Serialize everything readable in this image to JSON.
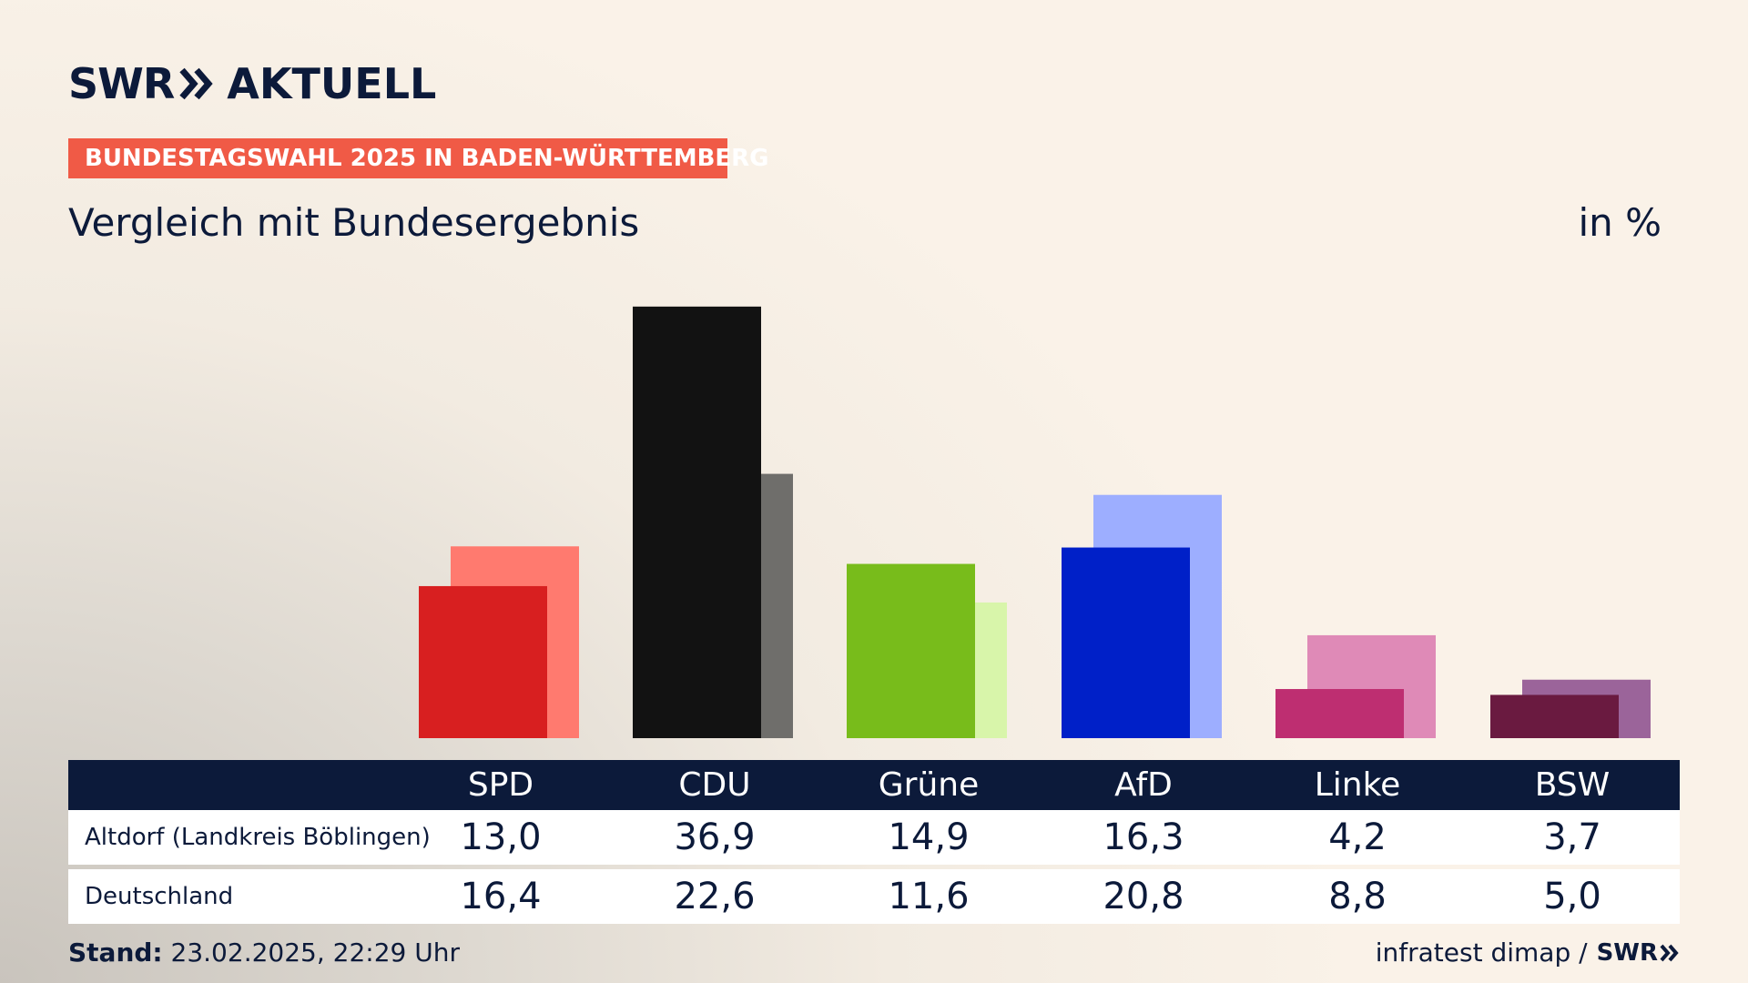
{
  "brand": {
    "swr": "SWR",
    "aktuell": "AKTUELL",
    "footer_swr": "SWR",
    "color": "#0c1a3a"
  },
  "banner": {
    "text": "BUNDESTAGSWAHL 2025 IN BADEN-WÜRTTEMBERG",
    "color": "#f05a46"
  },
  "header": {
    "subtitle": "Vergleich mit Bundesergebnis",
    "unit": "in %"
  },
  "footer": {
    "stand_label": "Stand:",
    "stand_value": "23.02.2025, 22:29 Uhr",
    "source": "infratest dimap /"
  },
  "chart_data": {
    "type": "bar",
    "categories": [
      "SPD",
      "CDU",
      "Grüne",
      "AfD",
      "Linke",
      "BSW"
    ],
    "ylim": [
      0,
      40
    ],
    "series": [
      {
        "name": "Altdorf (Landkreis Böblingen)",
        "values": [
          13.0,
          36.9,
          14.9,
          16.3,
          4.2,
          3.7
        ],
        "labels": [
          "13,0",
          "36,9",
          "14,9",
          "16,3",
          "4,2",
          "3,7"
        ],
        "colors": [
          "#d81f20",
          "#121212",
          "#78bc1b",
          "#0020c8",
          "#be2e71",
          "#6a1a40"
        ]
      },
      {
        "name": "Deutschland",
        "values": [
          16.4,
          22.6,
          11.6,
          20.8,
          8.8,
          5.0
        ],
        "labels": [
          "16,4",
          "22,6",
          "11,6",
          "20,8",
          "8,8",
          "5,0"
        ],
        "colors": [
          "#ff7a6f",
          "#6f6e6b",
          "#d8f5aa",
          "#9daeff",
          "#df8ab7",
          "#9b649a"
        ]
      }
    ]
  }
}
